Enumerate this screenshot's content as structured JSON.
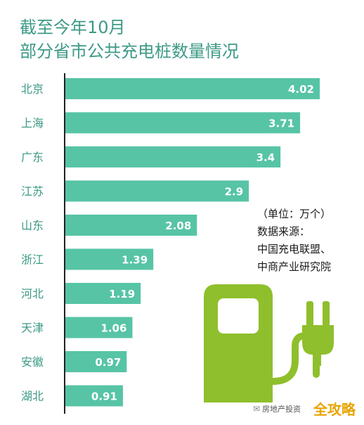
{
  "header": {
    "title_line1": "截至今年10月",
    "title_line2": "部分省市公共充电桩数量情况"
  },
  "note": {
    "unit": "（单位：万个）",
    "source_label": "数据来源：",
    "source_1": "中国充电联盟、",
    "source_2": "中商产业研究院"
  },
  "watermark": {
    "account": "房地产投资",
    "brand": "全攻略"
  },
  "icon": {
    "name": "ev-charging-station-icon",
    "color": "#8fbf2c"
  },
  "colors": {
    "bar": "#57c4a6",
    "title": "#3d9a86",
    "axis": "#222222"
  },
  "chart_data": {
    "type": "bar",
    "orientation": "horizontal",
    "categories": [
      "北京",
      "上海",
      "广东",
      "江苏",
      "山东",
      "浙江",
      "河北",
      "天津",
      "安徽",
      "湖北"
    ],
    "values": [
      4.02,
      3.71,
      3.4,
      2.9,
      2.08,
      1.39,
      1.19,
      1.06,
      0.97,
      0.91
    ],
    "data_labels": [
      "4.02",
      "3.71",
      "3.4",
      "2.9",
      "2.08",
      "1.39",
      "1.19",
      "1.06",
      "0.97",
      "0.91"
    ],
    "title": "截至今年10月 部分省市公共充电桩数量情况",
    "xlabel": "",
    "ylabel": "",
    "xlim": [
      0,
      4.02
    ],
    "grid": false,
    "legend": "none"
  }
}
